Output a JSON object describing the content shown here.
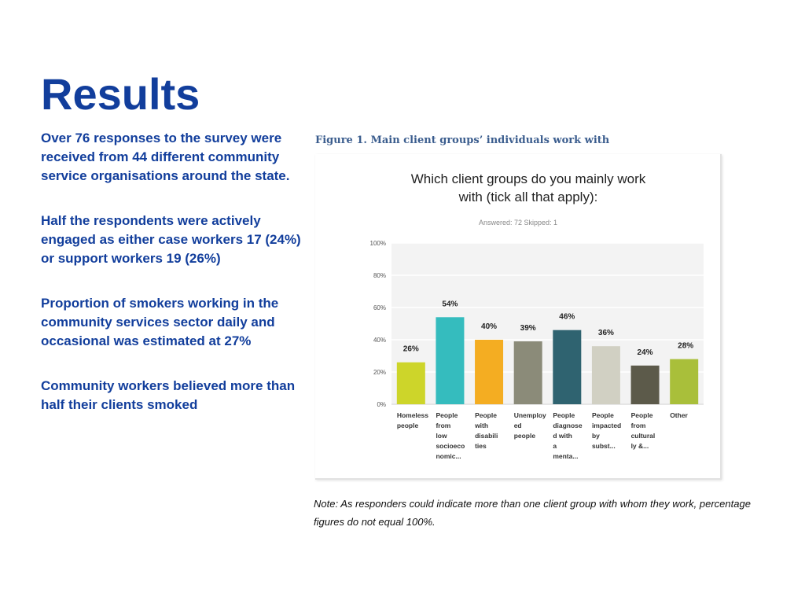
{
  "slide": {
    "title": "Results",
    "bullets": [
      "Over 76 responses to the survey were received from  44 different community service organisations around the state.",
      "Half the respondents were actively engaged as either case workers 17 (24%) or support workers 19 (26%)",
      "Proportion of smokers working in the community services sector daily and occasional  was estimated at 27%",
      "Community workers believed more than half their clients smoked"
    ],
    "figure_caption": "Figure 1. Main client groups’ individuals work with",
    "note": "Note: As responders could indicate more than one client group with whom they work, percentage figures do not equal 100%."
  },
  "chart_data": {
    "type": "bar",
    "title": "Which client groups do you mainly work with (tick all that apply):",
    "title_lines": [
      "Which client groups do you mainly work",
      "with (tick all that apply):"
    ],
    "subtitle": "Answered: 72    Skipped: 1",
    "categories": [
      [
        "Homeless",
        "people"
      ],
      [
        "People",
        "from",
        "low",
        "socioeco",
        "nomic..."
      ],
      [
        "People",
        "with",
        "disabili",
        "ties"
      ],
      [
        "Unemploy",
        "ed",
        "people"
      ],
      [
        "People",
        "diagnose",
        "d with",
        "a",
        "menta..."
      ],
      [
        "People",
        "impacted",
        "by",
        "subst..."
      ],
      [
        "People",
        "from",
        "cultural",
        "ly &..."
      ],
      [
        "Other"
      ]
    ],
    "values": [
      26,
      54,
      40,
      39,
      46,
      36,
      24,
      28
    ],
    "value_labels": [
      "26%",
      "54%",
      "40%",
      "39%",
      "46%",
      "36%",
      "24%",
      "28%"
    ],
    "colors": [
      "#cdd52a",
      "#35bcbe",
      "#f4ad22",
      "#8b8b79",
      "#2f6370",
      "#d1d0c3",
      "#5c5a4a",
      "#a9bf3a"
    ],
    "y_ticks": [
      "0%",
      "20%",
      "40%",
      "60%",
      "80%",
      "100%"
    ],
    "ylim": [
      0,
      100
    ],
    "grid": true,
    "plot_background": "#f3f3f3"
  }
}
